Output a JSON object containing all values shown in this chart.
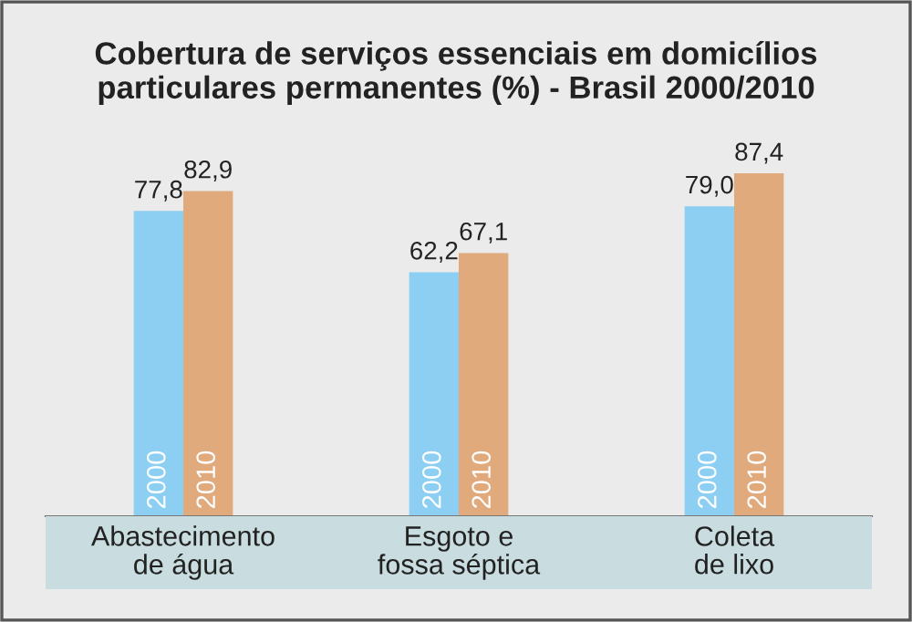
{
  "chart_data": {
    "type": "bar",
    "title": "Cobertura de serviços essenciais em domicílios\nparticulares permanentes (%) - Brasil 2000/2010",
    "categories": [
      "Abastecimento\nde água",
      "Esgoto e\nfossa séptica",
      "Coleta\nde lixo"
    ],
    "series": [
      {
        "name": "2000",
        "color": "#8ccff2",
        "values": [
          77.8,
          62.2,
          79.0
        ],
        "value_labels": [
          "77,8",
          "62,2",
          "79,0"
        ]
      },
      {
        "name": "2010",
        "color": "#e0aa7c",
        "values": [
          82.9,
          67.1,
          87.4
        ],
        "value_labels": [
          "82,9",
          "67,1",
          "87,4"
        ]
      }
    ],
    "legend": false
  }
}
